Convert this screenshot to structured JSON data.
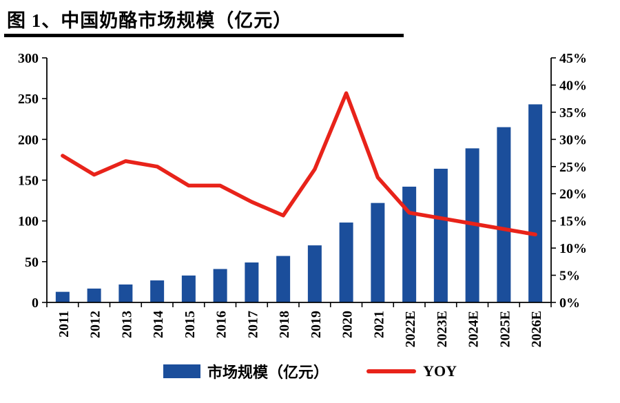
{
  "title": "图 1、中国奶酪市场规模（亿元）",
  "legend": {
    "bars": "市场规模（亿元）",
    "line": "YOY"
  },
  "chart_data": {
    "type": "bar",
    "subtype": "bar+line dual axis",
    "title": "图 1、中国奶酪市场规模（亿元）",
    "categories": [
      "2011",
      "2012",
      "2013",
      "2014",
      "2015",
      "2016",
      "2017",
      "2018",
      "2019",
      "2020",
      "2021",
      "2022E",
      "2023E",
      "2024E",
      "2025E",
      "2026E"
    ],
    "series": [
      {
        "name": "市场规模（亿元）",
        "type": "bar",
        "axis": "left",
        "values": [
          13,
          17,
          22,
          27,
          33,
          41,
          49,
          57,
          70,
          98,
          122,
          142,
          164,
          189,
          215,
          243
        ]
      },
      {
        "name": "YOY",
        "type": "line",
        "axis": "right",
        "values": [
          27,
          23.5,
          26,
          25,
          21.5,
          21.5,
          18.5,
          16,
          24.5,
          38.5,
          23,
          16.5,
          15.5,
          14.5,
          13.5,
          12.5
        ]
      }
    ],
    "left_axis": {
      "min": 0,
      "max": 300,
      "step": 50
    },
    "right_axis": {
      "min": 0,
      "max": 45,
      "step": 5,
      "suffix": "%"
    },
    "grid": false,
    "legend_position": "bottom",
    "colors": {
      "bar": "#1b4e9b",
      "line": "#e8231a",
      "axis": "#000000"
    }
  }
}
